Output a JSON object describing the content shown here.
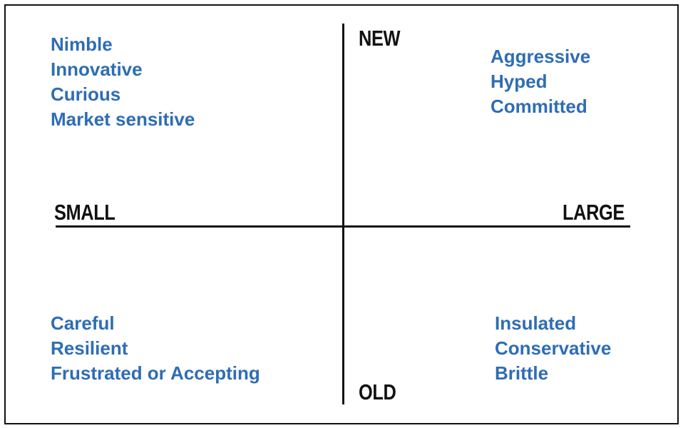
{
  "axes": {
    "top": "NEW",
    "bottom": "OLD",
    "left": "SMALL",
    "right": "LARGE"
  },
  "quadrants": {
    "top_left": [
      "Nimble",
      "Innovative",
      "Curious",
      "Market sensitive"
    ],
    "top_right": [
      "Aggressive",
      "Hyped",
      "Committed"
    ],
    "bottom_left": [
      "Careful",
      "Resilient",
      "Frustrated or Accepting"
    ],
    "bottom_right": [
      "Insulated",
      "Conservative",
      "Brittle"
    ]
  },
  "colors": {
    "text_accent": "#2e6db4",
    "axis": "#111111"
  }
}
